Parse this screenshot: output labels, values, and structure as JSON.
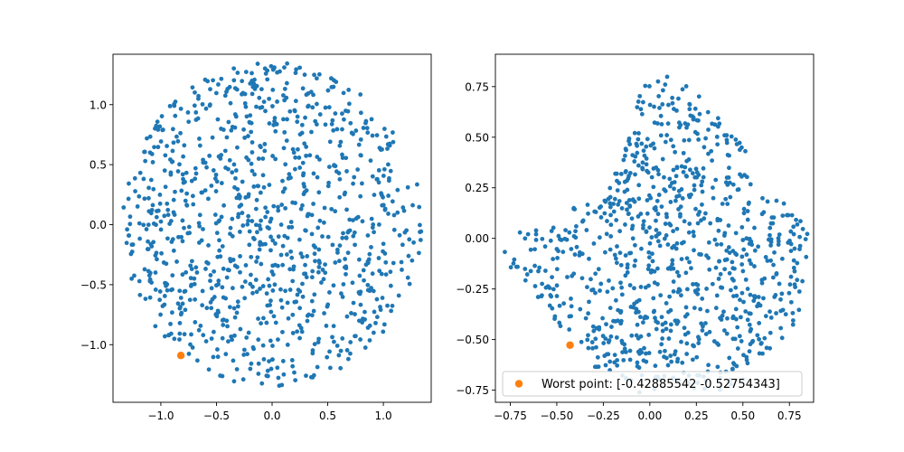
{
  "chart_data": [
    {
      "type": "scatter",
      "title": "",
      "xlabel": "",
      "ylabel": "",
      "xlim": [
        -1.43,
        1.43
      ],
      "ylim": [
        -1.48,
        1.42
      ],
      "xticks": [
        -1.0,
        -0.5,
        0.0,
        0.5,
        1.0
      ],
      "xtick_labels": [
        "−1.0",
        "−0.5",
        "0.0",
        "0.5",
        "1.0"
      ],
      "yticks": [
        -1.0,
        -0.5,
        0.0,
        0.5,
        1.0
      ],
      "ytick_labels": [
        "−1.0",
        "−0.5",
        "0.0",
        "0.5",
        "1.0"
      ],
      "grid": false,
      "series": [
        {
          "color": "#1f77b4",
          "marker": "circle",
          "distribution": "uniform-disk",
          "center": [
            0.0,
            0.0
          ],
          "radius": 1.35,
          "point_count": 1000
        },
        {
          "color": "#ff7f0e",
          "marker": "circle",
          "points": [
            [
              -0.82,
              -1.09
            ]
          ]
        }
      ]
    },
    {
      "type": "scatter",
      "title": "",
      "xlabel": "",
      "ylabel": "",
      "xlim": [
        -0.83,
        0.88
      ],
      "ylim": [
        -0.81,
        0.91
      ],
      "xticks": [
        -0.75,
        -0.5,
        -0.25,
        0.0,
        0.25,
        0.5,
        0.75
      ],
      "xtick_labels": [
        "−0.75",
        "−0.50",
        "−0.25",
        "0.00",
        "0.25",
        "0.50",
        "0.75"
      ],
      "yticks": [
        -0.75,
        -0.5,
        -0.25,
        0.0,
        0.25,
        0.5,
        0.75
      ],
      "ytick_labels": [
        "−0.75",
        "−0.50",
        "−0.25",
        "0.00",
        "0.25",
        "0.50",
        "0.75"
      ],
      "grid": false,
      "legend": {
        "position": "lower-center",
        "entries": [
          "Worst point: [-0.42885542 -0.52754343]"
        ]
      },
      "series": [
        {
          "color": "#1f77b4",
          "marker": "circle",
          "distribution": "uniform-blob",
          "outline": [
            [
              -0.8,
              -0.05
            ],
            [
              -0.55,
              0.16
            ],
            [
              -0.25,
              0.17
            ],
            [
              -0.1,
              0.52
            ],
            [
              -0.05,
              0.74
            ],
            [
              0.05,
              0.81
            ],
            [
              0.18,
              0.78
            ],
            [
              0.3,
              0.68
            ],
            [
              0.45,
              0.5
            ],
            [
              0.52,
              0.45
            ],
            [
              0.55,
              0.25
            ],
            [
              0.75,
              0.18
            ],
            [
              0.85,
              0.05
            ],
            [
              0.85,
              -0.25
            ],
            [
              0.8,
              -0.43
            ],
            [
              0.62,
              -0.58
            ],
            [
              0.5,
              -0.72
            ],
            [
              0.3,
              -0.78
            ],
            [
              0.05,
              -0.78
            ],
            [
              -0.12,
              -0.75
            ],
            [
              -0.28,
              -0.65
            ],
            [
              -0.45,
              -0.48
            ],
            [
              -0.55,
              -0.35
            ],
            [
              -0.72,
              -0.22
            ],
            [
              -0.8,
              -0.12
            ]
          ],
          "point_count": 900
        },
        {
          "name": "Worst point: [-0.42885542 -0.52754343]",
          "color": "#ff7f0e",
          "marker": "circle",
          "points": [
            [
              -0.4289,
              -0.5275
            ]
          ]
        }
      ]
    }
  ]
}
